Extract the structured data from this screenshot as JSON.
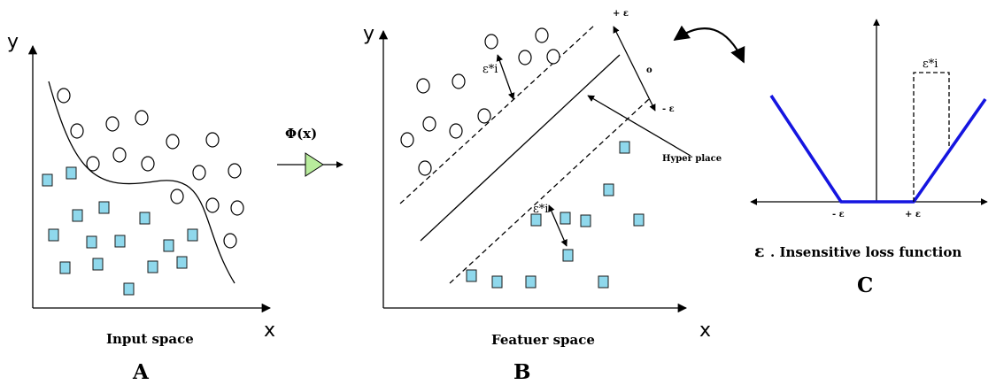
{
  "panel_a": {
    "axis_y": "y",
    "axis_x": "x",
    "caption": "Input space",
    "letter": "A"
  },
  "mapping": {
    "label": "Φ(x)"
  },
  "panel_b": {
    "axis_y": "y",
    "axis_x": "x",
    "caption": "Featuer space",
    "letter": "B",
    "plus_eps": "+ ε",
    "minus_eps": "- ε",
    "zero": "o",
    "hyperplane_label": "Hyper place",
    "slack_upper": "ε*i",
    "slack_lower": "ε*i"
  },
  "panel_c": {
    "minus_eps": "- ε",
    "plus_eps": "+ ε",
    "slack": "ε*i",
    "title_eps": "ε",
    "title_rest": ". Insensitive loss function",
    "letter": "C"
  },
  "colors": {
    "square_fill": "#8fd8ec",
    "loss_line": "#1515e0",
    "arrow_fill": "#b8ec9c"
  }
}
